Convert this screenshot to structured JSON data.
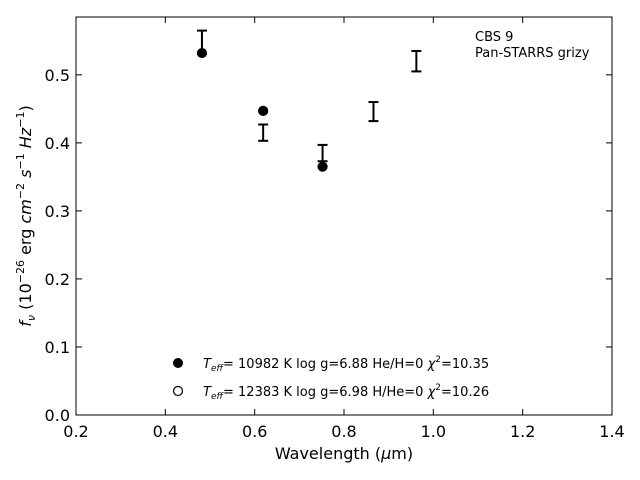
{
  "chart_data": {
    "type": "scatter",
    "annotation": [
      "CBS 9",
      "Pan-STARRS grizy"
    ],
    "xlabel": {
      "main": "Wavelength (",
      "mu": "μ",
      "rest": "m)"
    },
    "ylabel": {
      "text": "f_ν (10^−26 erg cm^−2 s^−1 Hz^−1)"
    },
    "xlim": [
      0.2,
      1.4
    ],
    "ylim": [
      0.0,
      0.585
    ],
    "x_ticks": [
      0.2,
      0.4,
      0.6,
      0.8,
      1.0,
      1.2,
      1.4
    ],
    "x_tick_labels": [
      "0.2",
      "0.4",
      "0.6",
      "0.8",
      "1.0",
      "1.2",
      "1.4"
    ],
    "y_ticks": [
      0.0,
      0.1,
      0.2,
      0.3,
      0.4,
      0.5
    ],
    "y_tick_labels": [
      "0.0",
      "0.1",
      "0.2",
      "0.3",
      "0.4",
      "0.5"
    ],
    "grid": false,
    "observed": {
      "x": [
        0.482,
        0.619,
        0.752,
        0.866,
        0.962
      ],
      "y": [
        0.548,
        0.415,
        0.385,
        0.446,
        0.52
      ],
      "err": [
        0.017,
        0.012,
        0.012,
        0.014,
        0.015
      ]
    },
    "series": [
      {
        "marker": "filled-circle",
        "x": [
          0.482,
          0.619,
          0.752
        ],
        "y": [
          0.532,
          0.447,
          0.365
        ],
        "legend": {
          "prefix": "T",
          "sub": "eff",
          "text": "= 10982 K  log g=6.88  He/H=0  ",
          "chi": "χ",
          "sup": "2",
          "tail": "=10.35"
        }
      },
      {
        "marker": "open-circle",
        "x": [],
        "y": [],
        "legend": {
          "prefix": "T",
          "sub": "eff",
          "text": "= 12383 K  log g=6.98  H/He=0  ",
          "chi": "χ",
          "sup": "2",
          "tail": "=10.26"
        }
      }
    ],
    "legend_position": "lower-center"
  }
}
